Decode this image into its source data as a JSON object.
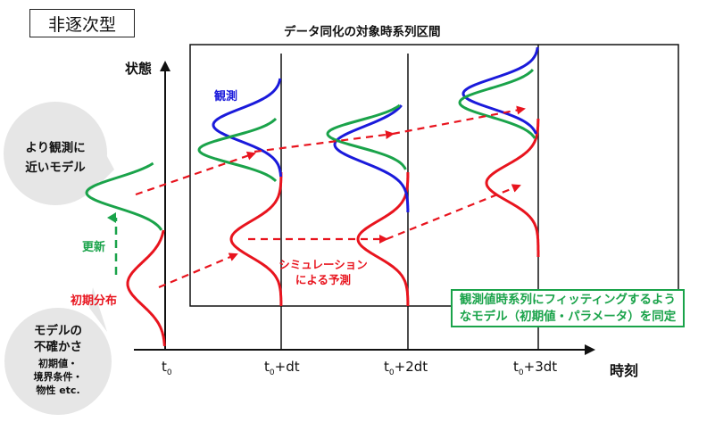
{
  "header": {
    "title": "非逐次型"
  },
  "window": {
    "label": "データ同化の対象時系列区間"
  },
  "axes": {
    "y_label": "状態",
    "x_label": "時刻"
  },
  "time_ticks": [
    {
      "main": "t",
      "sub": "0",
      "suffix": ""
    },
    {
      "main": "t",
      "sub": "0",
      "suffix": "+dt"
    },
    {
      "main": "t",
      "sub": "0",
      "suffix": "+2dt"
    },
    {
      "main": "t",
      "sub": "0",
      "suffix": "+3dt"
    }
  ],
  "labels": {
    "observation": "観測",
    "update": "更新",
    "initial_distribution": "初期分布",
    "simulation_line1": "シミュレーション",
    "simulation_line2": "による予測"
  },
  "callouts": {
    "closer_model": [
      "より観測に",
      "近いモデル"
    ],
    "uncertainty_title": [
      "モデルの",
      "不確かさ"
    ],
    "uncertainty_items": [
      "初期値・",
      "境界条件・",
      "物性 etc."
    ]
  },
  "note": [
    "観測値時系列にフィッティングするよう",
    "なモデル（初期値・パラメータ）を同定"
  ],
  "colors": {
    "observation": "#1a1adb",
    "updated": "#1aa34a",
    "prediction": "#e8141e",
    "axis": "#111111"
  }
}
